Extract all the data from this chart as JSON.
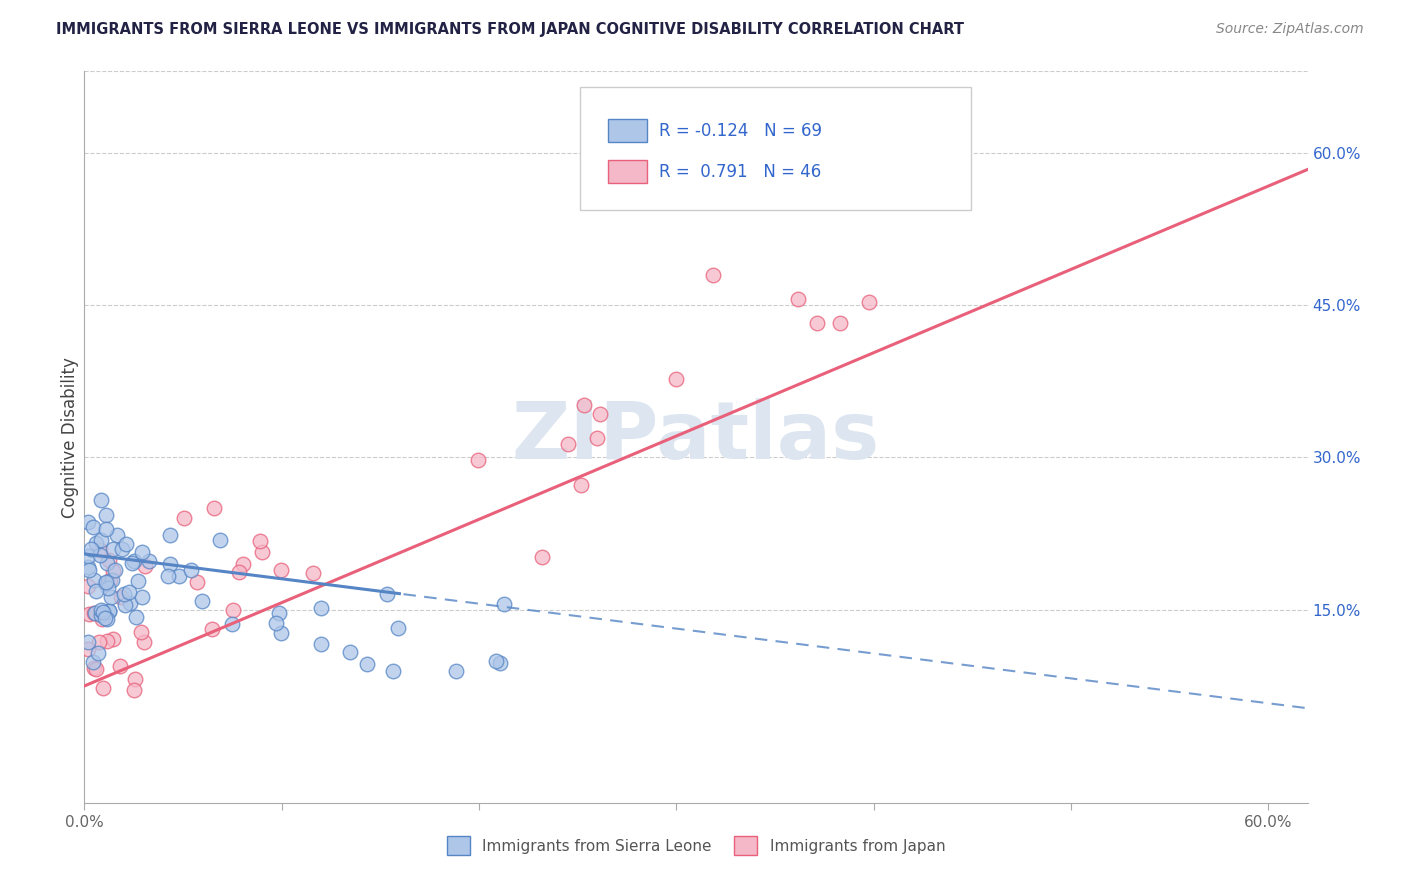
{
  "title": "IMMIGRANTS FROM SIERRA LEONE VS IMMIGRANTS FROM JAPAN COGNITIVE DISABILITY CORRELATION CHART",
  "source": "Source: ZipAtlas.com",
  "ylabel": "Cognitive Disability",
  "legend_label1": "Immigrants from Sierra Leone",
  "legend_label2": "Immigrants from Japan",
  "color_sl": "#aec6e8",
  "color_jp": "#f5b8c8",
  "line_color_sl": "#5585c5",
  "line_color_jp": "#e8607a",
  "background_color": "#ffffff",
  "xlim": [
    0.0,
    0.62
  ],
  "ylim": [
    -0.04,
    0.68
  ],
  "yticks_right": [
    0.15,
    0.3,
    0.45,
    0.6
  ],
  "ytick_labels_right": [
    "15.0%",
    "30.0%",
    "45.0%",
    "60.0%"
  ],
  "title_color": "#222244",
  "source_color": "#888888",
  "watermark_color": "#dde6f0",
  "tick_color": "#666666",
  "grid_color": "#cccccc",
  "legend_text_color": "#3366cc"
}
